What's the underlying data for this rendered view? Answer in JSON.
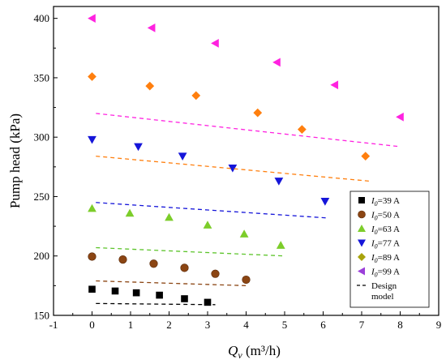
{
  "chart_data": {
    "type": "scatter",
    "xlabel": "Q_v (m³/h)",
    "xlabel_main": "Q",
    "xlabel_sub": "v",
    "xlabel_unit": " (m³/h)",
    "ylabel": "Pump head (kPa)",
    "xlim": [
      -1,
      9
    ],
    "ylim": [
      150,
      410
    ],
    "xticks": [
      -1,
      0,
      1,
      2,
      3,
      4,
      5,
      6,
      7,
      8,
      9
    ],
    "yticks": [
      150,
      200,
      250,
      300,
      350,
      400
    ],
    "grid": false,
    "legend_position": "right",
    "series": [
      {
        "name": "I0=39 A",
        "label_main": "I",
        "label_sub": "0",
        "label_rest": "=39 A",
        "marker": "square",
        "color": "#000000",
        "x": [
          0,
          0.6,
          1.15,
          1.75,
          2.4,
          3.0
        ],
        "y": [
          172,
          170.5,
          169,
          167,
          164,
          161
        ],
        "fit_x": [
          0.1,
          3.2
        ],
        "fit_y": [
          160,
          159
        ],
        "fit_color": "#000000"
      },
      {
        "name": "I0=50 A",
        "label_main": "I",
        "label_sub": "0",
        "label_rest": "=50 A",
        "marker": "circle",
        "color": "#8B4513",
        "x": [
          0,
          0.8,
          1.6,
          2.4,
          3.2,
          4.0
        ],
        "y": [
          199.5,
          197,
          193.5,
          190,
          185,
          180
        ],
        "fit_x": [
          0.1,
          4.0
        ],
        "fit_y": [
          179,
          175
        ],
        "fit_color": "#8B4513"
      },
      {
        "name": "I0=63 A",
        "label_main": "I",
        "label_sub": "0",
        "label_rest": "=63 A",
        "marker": "triangle-up",
        "color": "#7CCD2A",
        "x": [
          0,
          0.98,
          2.0,
          3.0,
          3.95,
          4.9
        ],
        "y": [
          240,
          236,
          232.5,
          226,
          218.5,
          209
        ],
        "fit_x": [
          0.1,
          5.0
        ],
        "fit_y": [
          207,
          200
        ],
        "fit_color": "#5CC42A"
      },
      {
        "name": "I0=77 A",
        "label_main": "I",
        "label_sub": "0",
        "label_rest": "=77 A",
        "marker": "triangle-down",
        "color": "#1515D9",
        "x": [
          0,
          1.2,
          2.35,
          3.65,
          4.85,
          6.05
        ],
        "y": [
          298,
          292,
          284,
          274,
          263,
          246
        ],
        "fit_x": [
          0.1,
          6.1
        ],
        "fit_y": [
          245,
          232
        ],
        "fit_color": "#1515D9"
      },
      {
        "name": "I0=89 A",
        "label_main": "I",
        "label_sub": "0",
        "label_rest": "=89 A",
        "marker": "diamond",
        "color": "#FF7F0E",
        "legend_color": "#A8A30C",
        "x": [
          0,
          1.5,
          2.7,
          4.3,
          5.45,
          7.1
        ],
        "y": [
          351,
          343,
          335,
          320.5,
          306.5,
          284
        ],
        "fit_x": [
          0.1,
          7.2
        ],
        "fit_y": [
          284,
          263
        ],
        "fit_color": "#FF7F0E"
      },
      {
        "name": "I0=99 A",
        "label_main": "I",
        "label_sub": "0",
        "label_rest": "=99 A",
        "marker": "triangle-left",
        "color": "#FF22E0",
        "legend_color": "#9B3FD9",
        "x": [
          0,
          1.55,
          3.2,
          4.8,
          6.3,
          8.0
        ],
        "y": [
          400,
          392,
          379,
          363,
          344,
          317
        ],
        "fit_x": [
          0.1,
          8.0
        ],
        "fit_y": [
          320,
          292
        ],
        "fit_color": "#FF22E0"
      }
    ],
    "fit_legend_line1": "Design",
    "fit_legend_line2": "model"
  }
}
